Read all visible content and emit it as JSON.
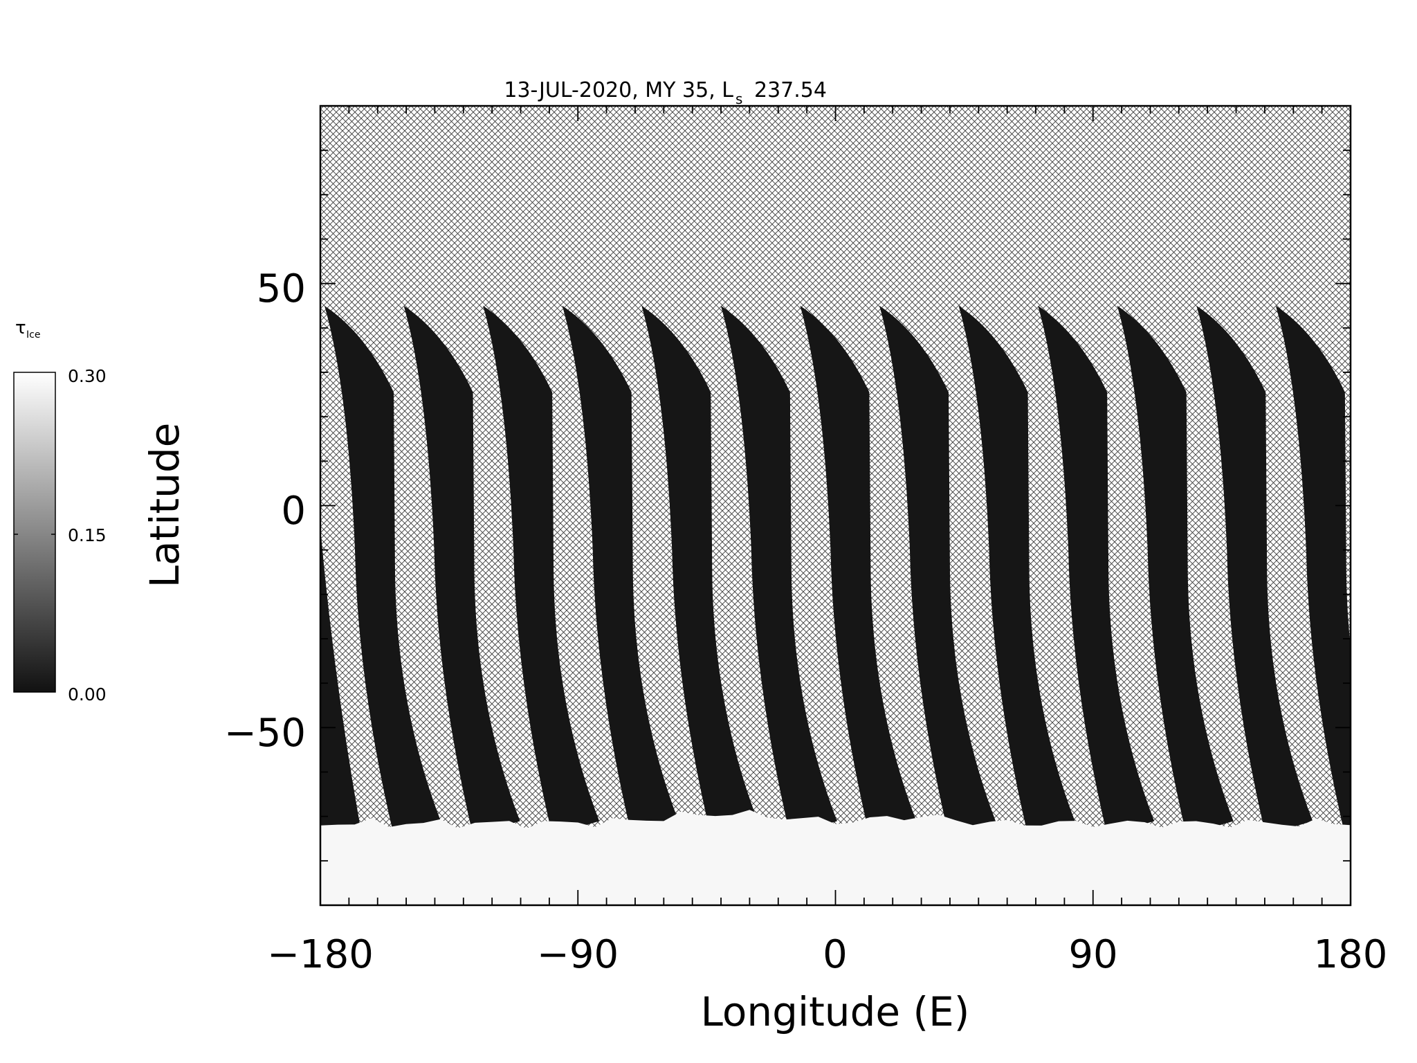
{
  "chart_data": {
    "type": "heatmap",
    "title_main": "13-JUL-2020, MY 35,  L",
    "title_sub": "s",
    "title_value": "237.54",
    "xlabel": "Longitude (E)",
    "ylabel": "Latitude",
    "xlim": [
      -180,
      180
    ],
    "ylim": [
      -90,
      90
    ],
    "x_ticks": [
      -180,
      -90,
      0,
      90,
      180
    ],
    "x_tick_labels": [
      "−180",
      "−90",
      "0",
      "90",
      "180"
    ],
    "y_ticks": [
      -50,
      0,
      50
    ],
    "y_tick_labels": [
      "−50",
      "0",
      "50"
    ],
    "no_data_fill": "crosshatch",
    "colorbar": {
      "label_main": "τ",
      "label_sub": "Ice",
      "min": 0.0,
      "max": 0.3,
      "tick_values": [
        0.0,
        0.15,
        0.3
      ],
      "tick_labels": [
        "0.00",
        "0.15",
        "0.30"
      ],
      "colormap": "grayscale",
      "low_color": "#111111",
      "high_color": "#ffffff"
    },
    "swaths": {
      "count": 13,
      "start_longitude": -180,
      "spacing_deg": 27.7,
      "northern_edge_lat": 45,
      "southern_edge_lat": -72,
      "value": 0.01
    },
    "polar_cap": {
      "lat_range": [
        -90,
        -70
      ],
      "value": 0.3
    },
    "colors": {
      "swath": "#161616",
      "cap": "#f7f7f7",
      "hatch": "#3a3a3a",
      "axis": "#000000"
    }
  }
}
